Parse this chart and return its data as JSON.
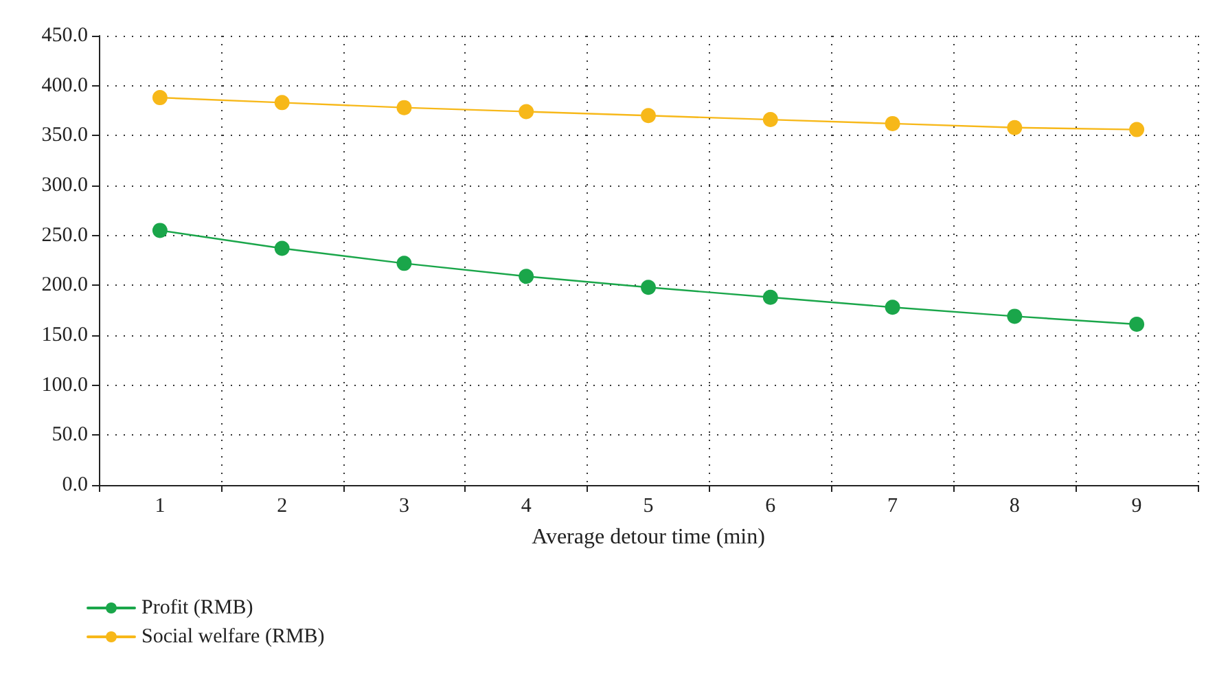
{
  "chart_data": {
    "type": "line",
    "xlabel": "Average detour time (min)",
    "categories": [
      "1",
      "2",
      "3",
      "4",
      "5",
      "6",
      "7",
      "8",
      "9"
    ],
    "series": [
      {
        "name": "Profit (RMB)",
        "color": "#1aa64a",
        "values": [
          255,
          237,
          222,
          209,
          198,
          188,
          178,
          169,
          161
        ]
      },
      {
        "name": "Social welfare (RMB)",
        "color": "#f7b819",
        "values": [
          388,
          383,
          378,
          374,
          370,
          366,
          362,
          358,
          356
        ]
      }
    ],
    "ylim": [
      0,
      450
    ],
    "yticks": [
      {
        "value": 0,
        "label": "0.0"
      },
      {
        "value": 50,
        "label": "50.0"
      },
      {
        "value": 100,
        "label": "100.0"
      },
      {
        "value": 150,
        "label": "150.0"
      },
      {
        "value": 200,
        "label": "200.0"
      },
      {
        "value": 250,
        "label": "250.0"
      },
      {
        "value": 300,
        "label": "300.0"
      },
      {
        "value": 350,
        "label": "350.0"
      },
      {
        "value": 400,
        "label": "400.0"
      },
      {
        "value": 450,
        "label": "450.0"
      }
    ],
    "grid": true,
    "legend": "bottom left",
    "marker": "circle",
    "line_style": "solid"
  }
}
